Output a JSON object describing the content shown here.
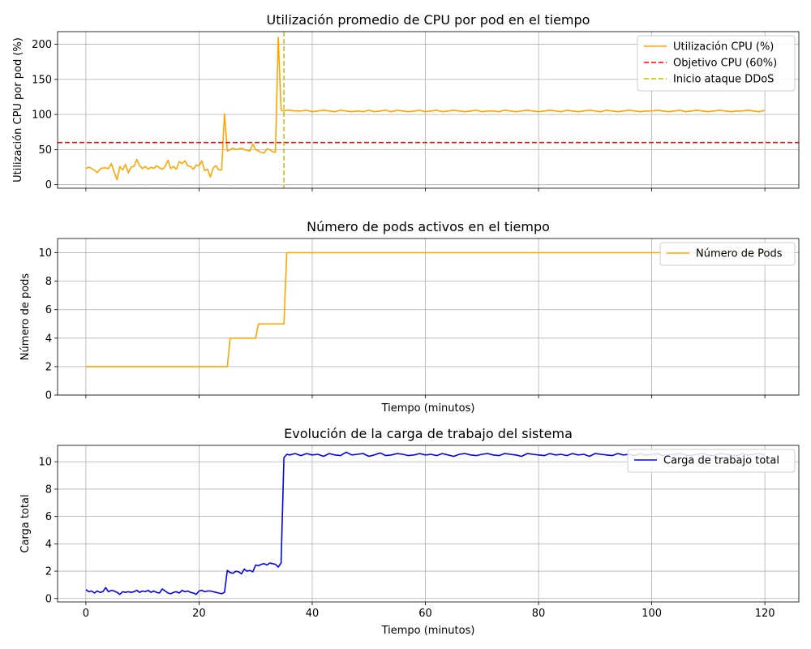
{
  "chart_data": [
    {
      "type": "line",
      "title": "Utilización promedio de CPU por pod en el tiempo",
      "xlabel": "",
      "ylabel": "Utilización CPU por pod (%)",
      "xlim": [
        -5,
        126
      ],
      "ylim": [
        -5,
        218
      ],
      "yticks": [
        0,
        50,
        100,
        150,
        200
      ],
      "ytick_labels": [
        "0",
        "50",
        "100",
        "150",
        "200"
      ],
      "xticks": [
        0,
        20,
        40,
        60,
        80,
        100,
        120
      ],
      "xticks_labeled": false,
      "grid": true,
      "legend_position": "top-right",
      "series": [
        {
          "name": "Utilización CPU (%)",
          "color": "#ffa500",
          "style": "solid",
          "x": [
            0,
            0.5,
            1,
            1.5,
            2,
            2.5,
            3,
            3.5,
            4,
            4.5,
            5,
            5.5,
            6,
            6.5,
            7,
            7.5,
            8,
            8.5,
            9,
            9.5,
            10,
            10.5,
            11,
            11.5,
            12,
            12.5,
            13,
            13.5,
            14,
            14.5,
            15,
            15.5,
            16,
            16.5,
            17,
            17.5,
            18,
            18.5,
            19,
            19.5,
            20,
            20.5,
            21,
            21.5,
            22,
            22.5,
            23,
            23.5,
            24,
            24.5,
            25,
            25.5,
            26,
            26.5,
            27,
            27.5,
            28,
            28.5,
            29,
            29.5,
            30,
            30.5,
            31,
            31.5,
            32,
            32.5,
            33,
            33.5,
            34,
            34.5,
            35,
            35.5,
            36,
            37,
            38,
            39,
            40,
            41,
            42,
            43,
            44,
            45,
            46,
            47,
            48,
            49,
            50,
            51,
            52,
            53,
            54,
            55,
            56,
            57,
            58,
            59,
            60,
            61,
            62,
            63,
            64,
            65,
            66,
            67,
            68,
            69,
            70,
            71,
            72,
            73,
            74,
            75,
            76,
            77,
            78,
            79,
            80,
            81,
            82,
            83,
            84,
            85,
            86,
            87,
            88,
            89,
            90,
            91,
            92,
            93,
            94,
            95,
            96,
            97,
            98,
            99,
            100,
            101,
            102,
            103,
            104,
            105,
            106,
            107,
            108,
            109,
            110,
            111,
            112,
            113,
            114,
            115,
            116,
            117,
            118,
            119,
            120
          ],
          "y": [
            23,
            25,
            23,
            21,
            17,
            22,
            24,
            24,
            23,
            30,
            18,
            7,
            26,
            21,
            29,
            17,
            25,
            26,
            36,
            27,
            23,
            26,
            22,
            25,
            23,
            27,
            24,
            22,
            26,
            35,
            23,
            26,
            22,
            33,
            30,
            34,
            27,
            26,
            22,
            28,
            27,
            34,
            20,
            22,
            11,
            24,
            27,
            21,
            21,
            101,
            48,
            50,
            52,
            50,
            51,
            52,
            50,
            49,
            48,
            58,
            50,
            48,
            46,
            45,
            51,
            50,
            47,
            46,
            210,
            106,
            105,
            106,
            106,
            105,
            105,
            106,
            104,
            105,
            106,
            105,
            104,
            106,
            105,
            104,
            105,
            104,
            106,
            104,
            105,
            106,
            104,
            106,
            105,
            104,
            105,
            106,
            104,
            105,
            106,
            104,
            105,
            106,
            105,
            104,
            105,
            106,
            104,
            105,
            105,
            104,
            106,
            105,
            104,
            105,
            106,
            105,
            104,
            105,
            106,
            105,
            104,
            106,
            105,
            104,
            105,
            106,
            105,
            104,
            106,
            105,
            104,
            105,
            106,
            105,
            104,
            105,
            105,
            106,
            105,
            104,
            105,
            106,
            104,
            105,
            106,
            105,
            104,
            105,
            106,
            105,
            104,
            105,
            105,
            106,
            105,
            104,
            106
          ]
        },
        {
          "name": "Objetivo CPU (60%)",
          "color": "#ff0000",
          "style": "dashed",
          "orientation": "horizontal",
          "value": 60
        },
        {
          "name": "Inicio ataque DDoS",
          "color": "#bfbf00",
          "style": "dashed",
          "orientation": "vertical",
          "value": 35
        }
      ]
    },
    {
      "type": "line",
      "title": "Número de pods activos en el tiempo",
      "xlabel": "Tiempo (minutos)",
      "ylabel": "Número de pods",
      "xlim": [
        -5,
        126
      ],
      "ylim": [
        0,
        11
      ],
      "yticks": [
        0,
        2,
        4,
        6,
        8,
        10
      ],
      "ytick_labels": [
        "0",
        "2",
        "4",
        "6",
        "8",
        "10"
      ],
      "xticks": [
        0,
        20,
        40,
        60,
        80,
        100,
        120
      ],
      "xticks_labeled": false,
      "grid": true,
      "legend_position": "top-right",
      "series": [
        {
          "name": "Número de Pods",
          "color": "#ffa500",
          "style": "solid",
          "x": [
            0,
            25,
            25.5,
            30,
            30.5,
            35,
            35.5,
            120
          ],
          "y": [
            2,
            2,
            4,
            4,
            5,
            5,
            10,
            10
          ]
        }
      ]
    },
    {
      "type": "line",
      "title": "Evolución de la carga de trabajo del sistema",
      "xlabel": "Tiempo (minutos)",
      "ylabel": "Carga total",
      "xlim": [
        -5,
        126
      ],
      "ylim": [
        -0.25,
        11.2
      ],
      "yticks": [
        0,
        2,
        4,
        6,
        8,
        10
      ],
      "ytick_labels": [
        "0",
        "2",
        "4",
        "6",
        "8",
        "10"
      ],
      "xticks": [
        0,
        20,
        40,
        60,
        80,
        100,
        120
      ],
      "xtick_labels": [
        "0",
        "20",
        "40",
        "60",
        "80",
        "100",
        "120"
      ],
      "grid": true,
      "legend_position": "top-right",
      "series": [
        {
          "name": "Carga de trabajo total",
          "color": "#0000ff",
          "style": "solid",
          "x": [
            0,
            0.5,
            1,
            1.5,
            2,
            2.5,
            3,
            3.5,
            4,
            4.5,
            5,
            5.5,
            6,
            6.5,
            7,
            7.5,
            8,
            8.5,
            9,
            9.5,
            10,
            10.5,
            11,
            11.5,
            12,
            12.5,
            13,
            13.5,
            14,
            14.5,
            15,
            15.5,
            16,
            16.5,
            17,
            17.5,
            18,
            18.5,
            19,
            19.5,
            20,
            20.5,
            21,
            21.5,
            22,
            22.5,
            23,
            23.5,
            24,
            24.5,
            25,
            25.5,
            26,
            26.5,
            27,
            27.5,
            28,
            28.5,
            29,
            29.5,
            30,
            30.5,
            31,
            31.5,
            32,
            32.5,
            33,
            33.5,
            34,
            34.5,
            35,
            35.5,
            36,
            37,
            38,
            39,
            40,
            41,
            42,
            43,
            44,
            45,
            46,
            47,
            48,
            49,
            50,
            51,
            52,
            53,
            54,
            55,
            56,
            57,
            58,
            59,
            60,
            61,
            62,
            63,
            64,
            65,
            66,
            67,
            68,
            69,
            70,
            71,
            72,
            73,
            74,
            75,
            76,
            77,
            78,
            79,
            80,
            81,
            82,
            83,
            84,
            85,
            86,
            87,
            88,
            89,
            90,
            91,
            92,
            93,
            94,
            95,
            96,
            97,
            98,
            99,
            100,
            101,
            102,
            103,
            104,
            105,
            106,
            107,
            108,
            109,
            110,
            111,
            112,
            113,
            114,
            115,
            116,
            117,
            118,
            119,
            120
          ],
          "y": [
            0.65,
            0.5,
            0.55,
            0.4,
            0.55,
            0.45,
            0.5,
            0.8,
            0.5,
            0.6,
            0.55,
            0.45,
            0.3,
            0.5,
            0.45,
            0.5,
            0.45,
            0.5,
            0.6,
            0.45,
            0.55,
            0.5,
            0.6,
            0.45,
            0.55,
            0.45,
            0.4,
            0.7,
            0.55,
            0.4,
            0.35,
            0.45,
            0.5,
            0.4,
            0.6,
            0.5,
            0.55,
            0.45,
            0.4,
            0.3,
            0.55,
            0.6,
            0.5,
            0.55,
            0.55,
            0.5,
            0.45,
            0.4,
            0.35,
            0.45,
            2.05,
            1.9,
            1.85,
            2.0,
            1.95,
            1.8,
            2.15,
            2.0,
            2.05,
            1.95,
            2.45,
            2.4,
            2.5,
            2.55,
            2.45,
            2.6,
            2.55,
            2.5,
            2.3,
            2.6,
            10.3,
            10.55,
            10.5,
            10.6,
            10.45,
            10.6,
            10.5,
            10.55,
            10.4,
            10.6,
            10.5,
            10.45,
            10.7,
            10.5,
            10.55,
            10.6,
            10.4,
            10.5,
            10.65,
            10.45,
            10.5,
            10.6,
            10.55,
            10.45,
            10.5,
            10.6,
            10.5,
            10.55,
            10.45,
            10.6,
            10.5,
            10.4,
            10.55,
            10.6,
            10.5,
            10.45,
            10.55,
            10.6,
            10.5,
            10.45,
            10.6,
            10.55,
            10.5,
            10.4,
            10.6,
            10.55,
            10.5,
            10.45,
            10.6,
            10.5,
            10.55,
            10.45,
            10.6,
            10.5,
            10.55,
            10.4,
            10.6,
            10.55,
            10.5,
            10.45,
            10.6,
            10.5,
            10.55,
            10.45,
            10.6,
            10.5,
            10.55,
            10.6,
            10.45,
            10.5,
            10.55,
            10.6,
            10.5,
            10.45,
            10.55,
            10.6,
            10.5,
            10.45,
            10.6,
            10.55,
            10.5,
            10.45,
            10.6,
            10.5,
            10.55,
            10.6,
            10.5
          ]
        }
      ]
    }
  ]
}
